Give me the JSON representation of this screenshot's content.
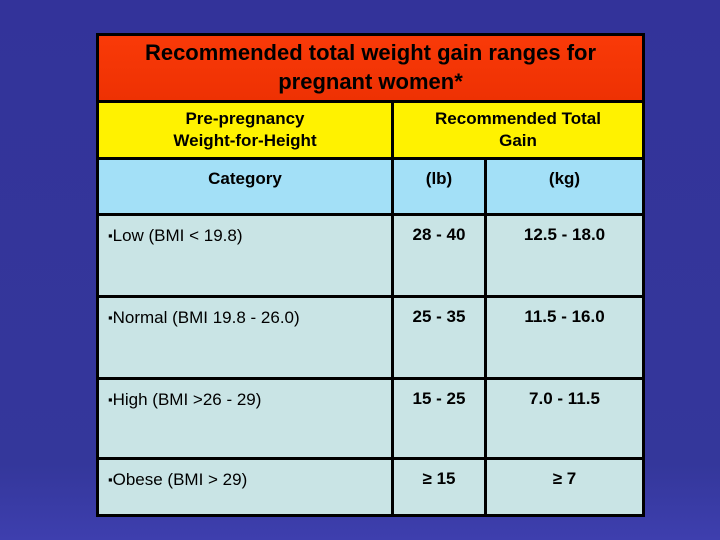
{
  "slide": {
    "title": "Recommended total weight gain ranges for pregnant women*",
    "colors": {
      "background": "#34379B",
      "title_banner": "#F23505",
      "header_yellow": "#FFF200",
      "subheader_blue": "#A3E0F7",
      "row_blue": "#C9E4E5",
      "border": "#000000",
      "text": "#000000"
    },
    "table": {
      "bullet": "▪",
      "header": {
        "col_category": "Pre-pregnancy Weight-for-Height",
        "col_gain": "Recommended Total Gain"
      },
      "subheader": {
        "category": "Category",
        "lb": "(lb)",
        "kg": "(kg)"
      },
      "rows": [
        {
          "label": "Low (BMI < 19.8)",
          "lb": "28 - 40",
          "kg": "12.5 - 18.0"
        },
        {
          "label": "Normal (BMI 19.8 - 26.0)",
          "lb": "25 - 35",
          "kg": "11.5 - 16.0"
        },
        {
          "label": "High (BMI >26 - 29)",
          "lb": "15 - 25",
          "kg": "7.0 - 11.5"
        },
        {
          "label": "Obese (BMI > 29)",
          "lb": "≥ 15",
          "kg": "≥ 7"
        }
      ]
    }
  }
}
